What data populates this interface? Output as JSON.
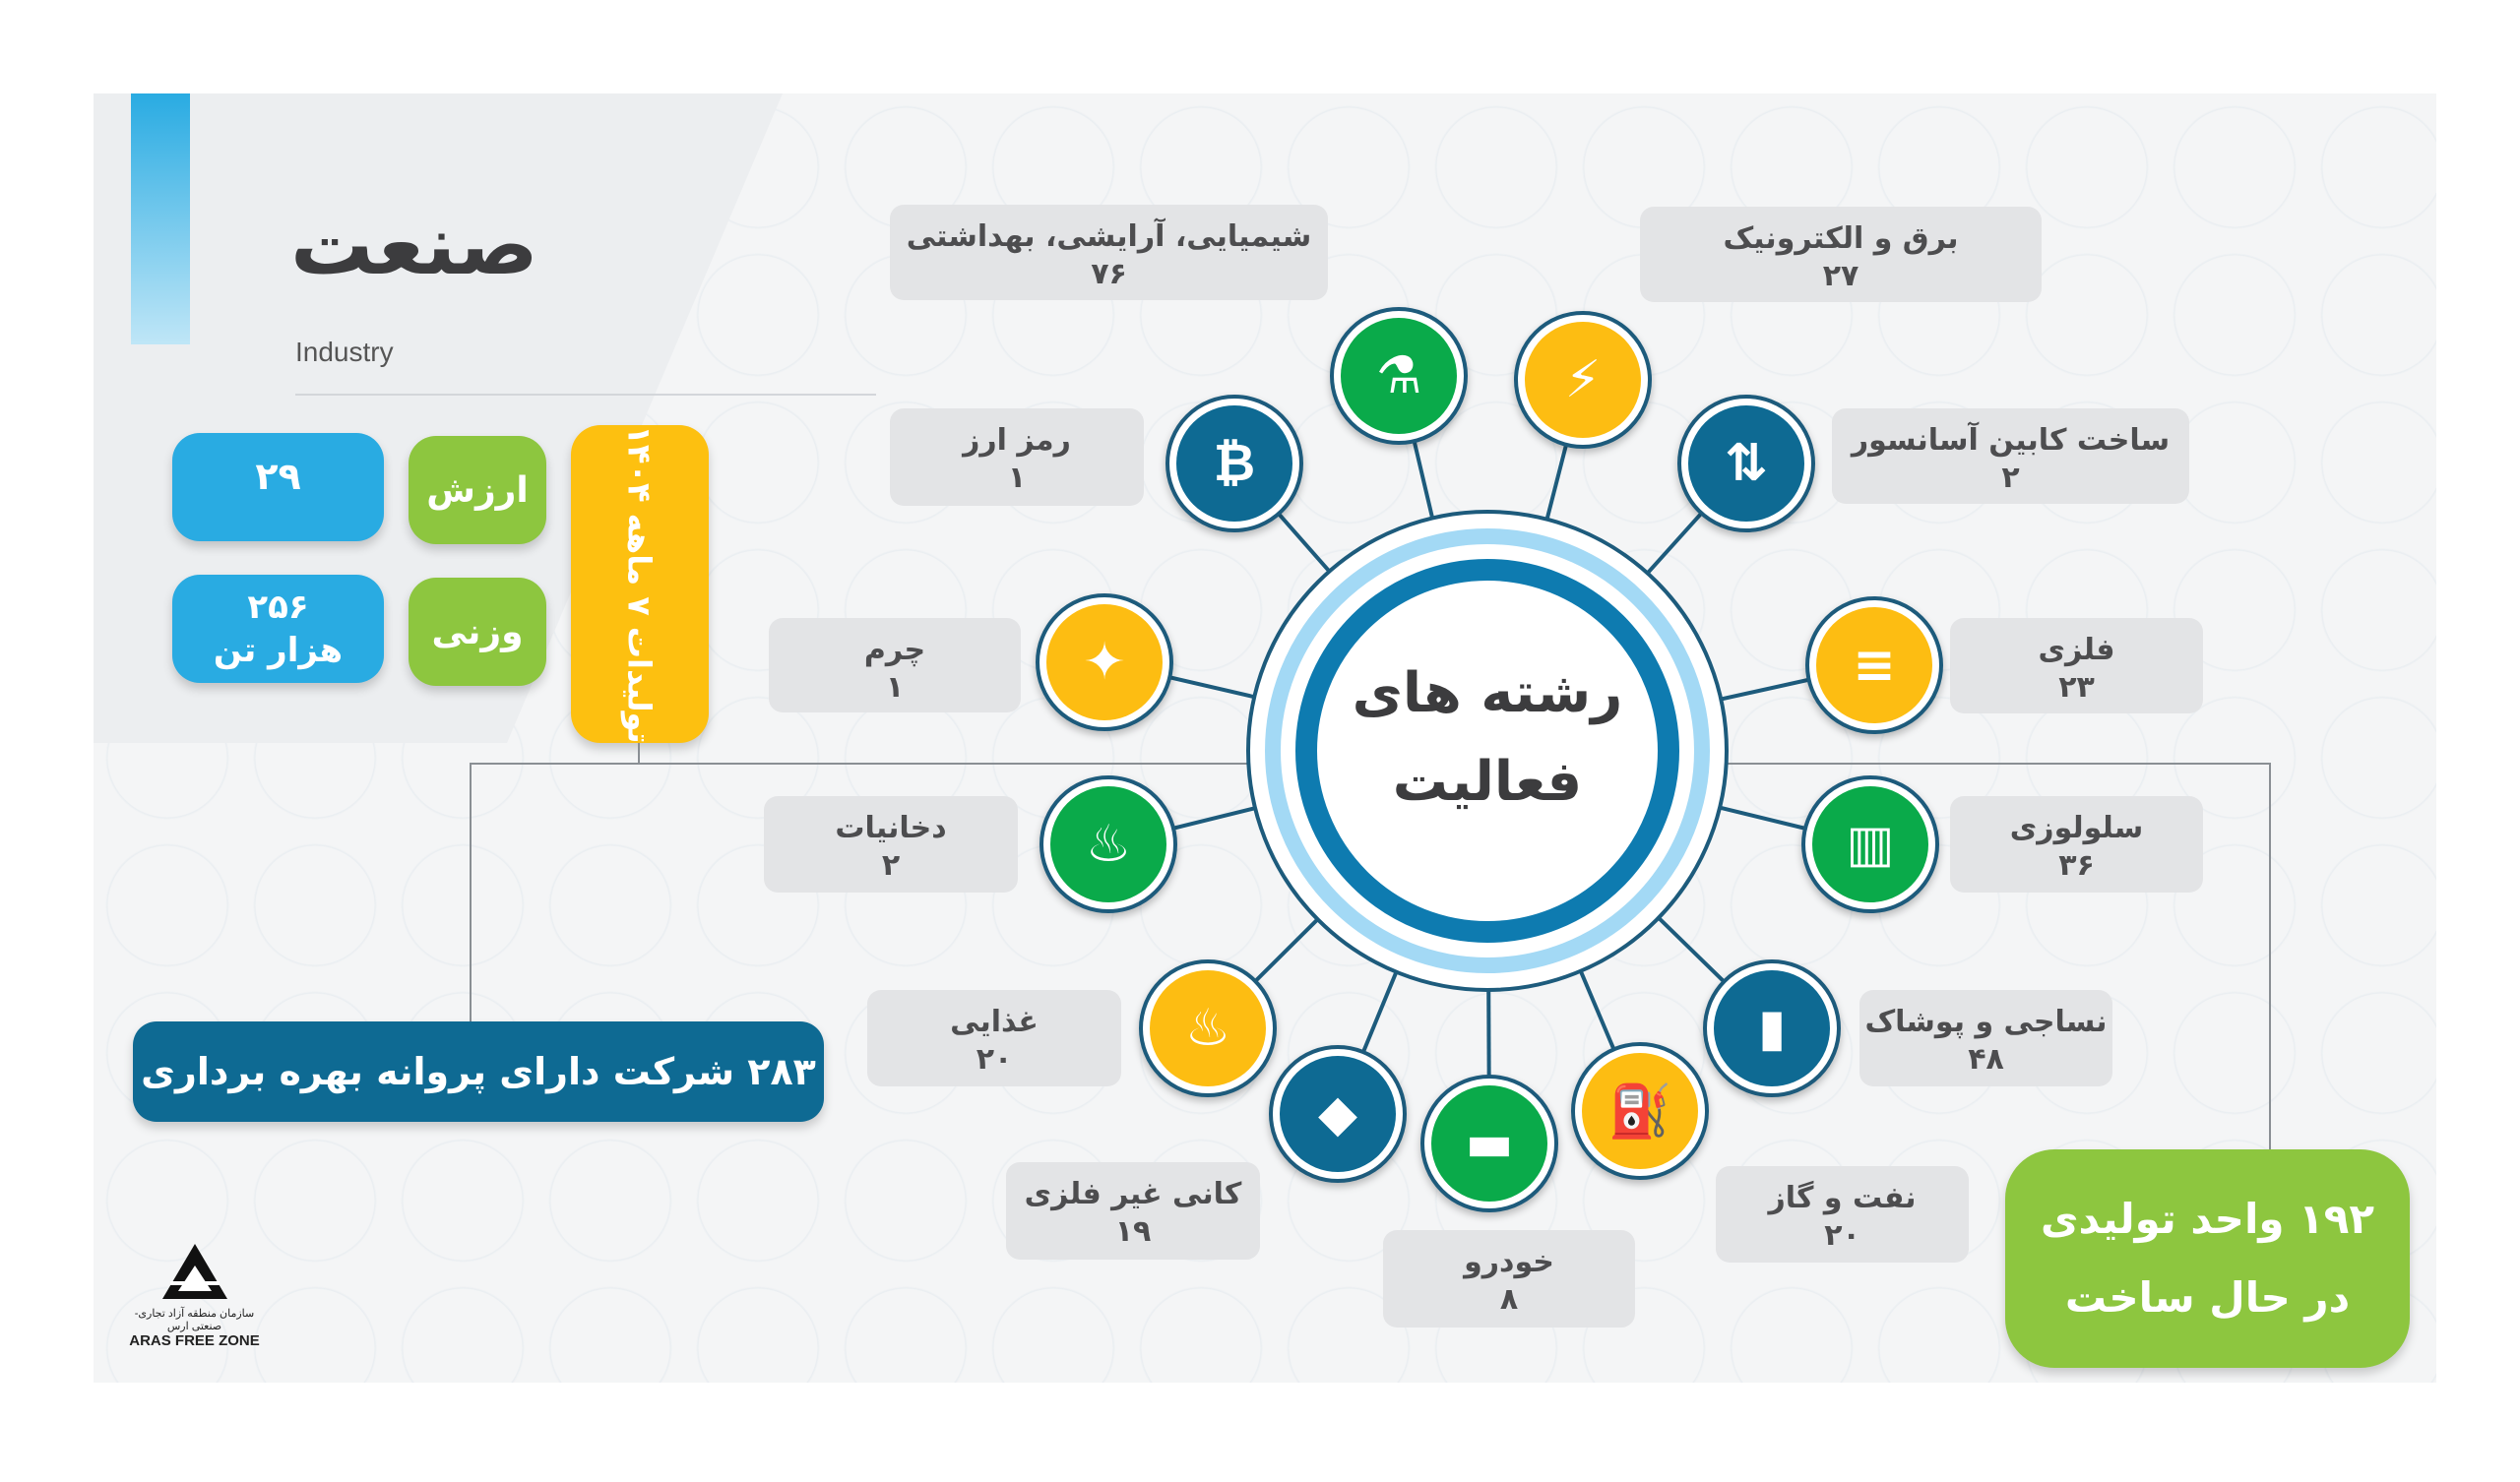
{
  "header": {
    "title": "صنعت",
    "subtitle": "Industry"
  },
  "stats": {
    "period": "تولیدات ۷ ماهه ۱۴۰۴",
    "value_label": "ارزش",
    "value": "۲۹",
    "weight_label": "وزنی",
    "weight": "۲۵۶",
    "weight_unit": "هزار تن"
  },
  "banner": "۲۸۳ شرکت دارای پروانه بهره برداری",
  "construction": {
    "line1": "۱۹۲ واحد تولیدی",
    "line2": "در حال ساخت"
  },
  "center": {
    "line1": "رشته های",
    "line2": "فعالیت"
  },
  "colors": {
    "green": "#0aaa4a",
    "yellow": "#fdbd12",
    "blue": "#0e6a93",
    "accent_cyan": "#29abe2",
    "accent_green": "#8dc63f"
  },
  "sectors": [
    {
      "name": "شیمیایی، آرایشی، بهداشتی",
      "count": "۷۶",
      "icon": "chemical-bottle-icon",
      "color": "green"
    },
    {
      "name": "برق و الکترونیک",
      "count": "۲۷",
      "icon": "lightning-icon",
      "color": "yellow"
    },
    {
      "name": "رمز ارز",
      "count": "۱",
      "icon": "bitcoin-icon",
      "color": "blue"
    },
    {
      "name": "ساخت کابین آسانسور",
      "count": "۲",
      "icon": "elevator-icon",
      "color": "blue"
    },
    {
      "name": "چرم",
      "count": "۱",
      "icon": "leather-icon",
      "color": "yellow"
    },
    {
      "name": "فلزی",
      "count": "۲۳",
      "icon": "steel-beam-icon",
      "color": "yellow"
    },
    {
      "name": "دخانیات",
      "count": "۲",
      "icon": "pipe-icon",
      "color": "green"
    },
    {
      "name": "سلولوزی",
      "count": "۳۶",
      "icon": "paper-roll-icon",
      "color": "green"
    },
    {
      "name": "غذایی",
      "count": "۲۰",
      "icon": "food-icon",
      "color": "yellow"
    },
    {
      "name": "نساجی و پوشاک",
      "count": "۴۸",
      "icon": "thread-spool-icon",
      "color": "blue"
    },
    {
      "name": "کانی غیر فلزی",
      "count": "۱۹",
      "icon": "mineral-icon",
      "color": "blue"
    },
    {
      "name": "خودرو",
      "count": "۸",
      "icon": "car-icon",
      "color": "green"
    },
    {
      "name": "نفت و گاز",
      "count": "۲۰",
      "icon": "oil-pump-icon",
      "color": "yellow"
    }
  ],
  "logo": {
    "text": "ARAS FREE ZONE",
    "subtext": "سازمان منطقه آزاد تجاری-صنعتی ارس"
  }
}
